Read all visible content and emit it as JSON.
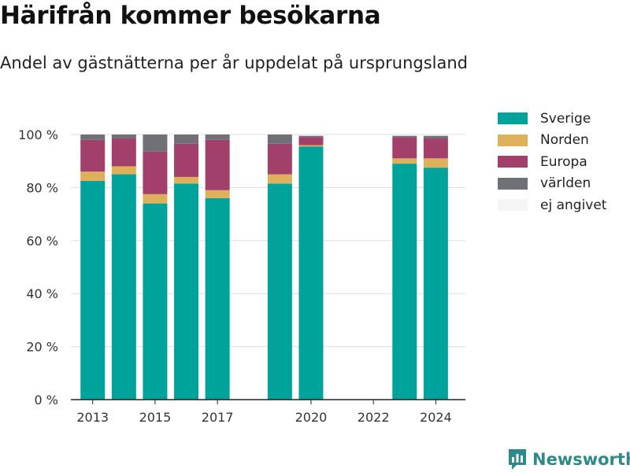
{
  "title": "Härifrån kommer besökarna",
  "subtitle": "Andel av gästnätterna per år uppdelat på ursprungsland",
  "brand": {
    "name": "Newsworthy",
    "icon": "newsworthy-logo-icon",
    "color": "#2e8a8a"
  },
  "chart_data": {
    "type": "bar",
    "stacked": true,
    "title": "",
    "xlabel": "",
    "ylabel": "",
    "categories": [
      "2013",
      "2014",
      "2015",
      "2016",
      "2017",
      "2019",
      "2020",
      "2023",
      "2024"
    ],
    "x_ticks": [
      "2013",
      "2015",
      "2017",
      "2020",
      "2022",
      "2024"
    ],
    "y_ticks": [
      "0 %",
      "20 %",
      "40 %",
      "60 %",
      "80 %",
      "100 %"
    ],
    "ylim": [
      0,
      100
    ],
    "xlim": [
      2012.3,
      2024.95
    ],
    "grid": true,
    "legend_position": "right",
    "series": [
      {
        "name": "Sverige",
        "color": "#00a39b",
        "values": [
          82.5,
          85,
          74,
          81.5,
          76,
          81.5,
          95.5,
          89,
          87.5
        ]
      },
      {
        "name": "Norden",
        "color": "#dfb05c",
        "values": [
          3.5,
          3,
          3.5,
          2.5,
          3,
          3.5,
          0.5,
          2,
          3.5
        ]
      },
      {
        "name": "Europa",
        "color": "#a23f6a",
        "values": [
          12,
          10.5,
          16,
          12.5,
          19,
          11.5,
          3,
          8,
          7.5
        ]
      },
      {
        "name": "världen",
        "color": "#707177",
        "values": [
          2,
          1.5,
          6.5,
          3.5,
          2,
          3.5,
          0.5,
          0.5,
          1
        ]
      },
      {
        "name": "ej angivet",
        "color": "#f5f5f5",
        "values": [
          0,
          0,
          0,
          0,
          0,
          0,
          0,
          0,
          0
        ]
      }
    ]
  }
}
